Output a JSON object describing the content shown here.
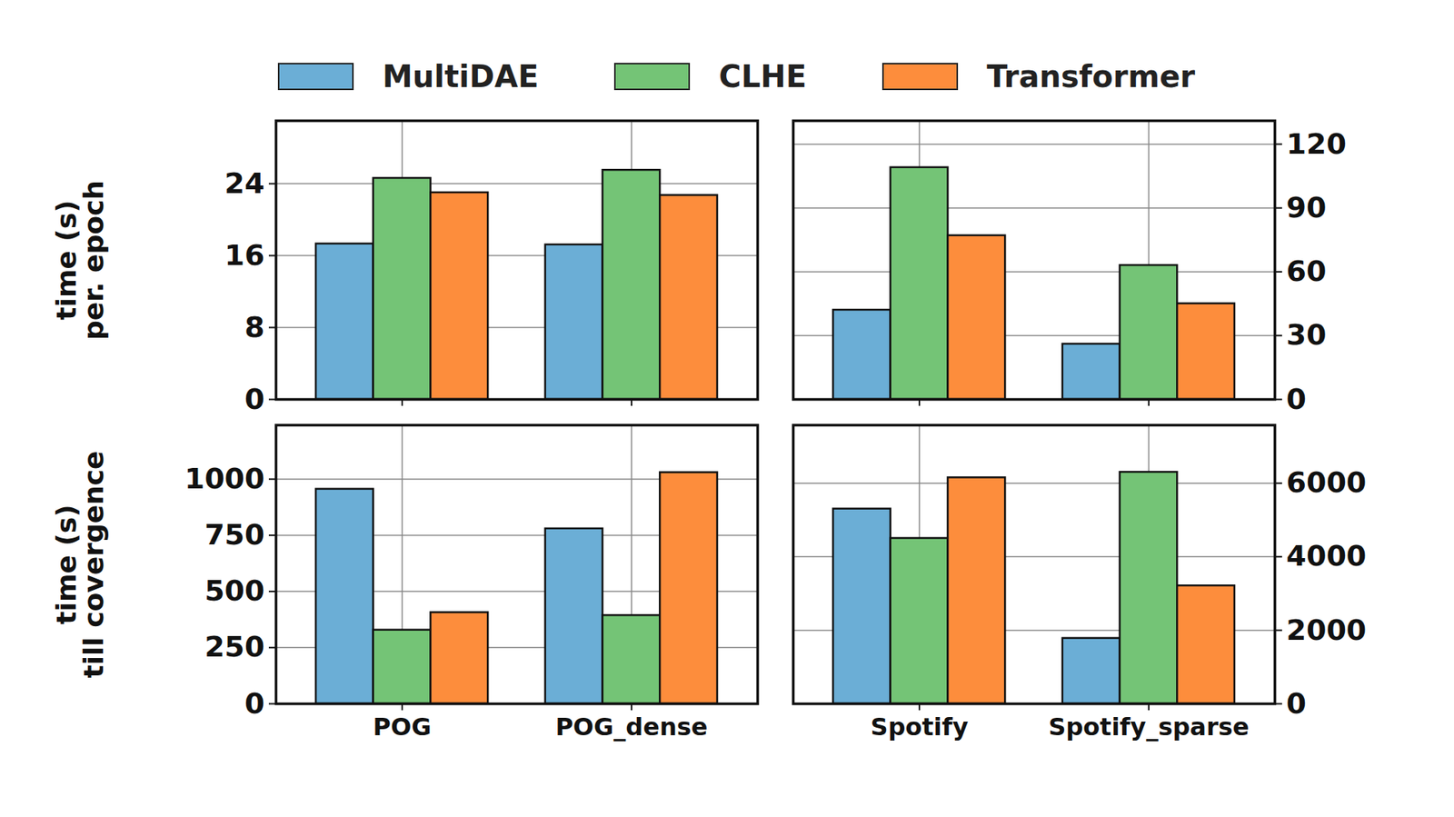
{
  "chart_data": [
    {
      "type": "bar",
      "ylabel": "time (s)\nper. epoch",
      "legend": "upper center",
      "categories": [
        "POG",
        "POG_dense"
      ],
      "series": [
        {
          "name": "MultiDAE",
          "color": "#6baed6",
          "values": [
            17.3,
            17.2
          ]
        },
        {
          "name": "CLHE",
          "color": "#74c476",
          "values": [
            24.6,
            25.5
          ]
        },
        {
          "name": "Transformer",
          "color": "#fd8d3c",
          "values": [
            23.0,
            22.7
          ]
        }
      ],
      "ylim": [
        0,
        31
      ],
      "yticks": [
        0,
        8,
        16,
        24
      ],
      "grid": true,
      "tick_labels": "y"
    },
    {
      "type": "bar",
      "categories": [
        "Spotify",
        "Spotify_sparse"
      ],
      "series": [
        {
          "name": "MultiDAE",
          "color": "#6baed6",
          "values": [
            42,
            26
          ]
        },
        {
          "name": "CLHE",
          "color": "#74c476",
          "values": [
            109,
            63
          ]
        },
        {
          "name": "Transformer",
          "color": "#fd8d3c",
          "values": [
            77,
            45
          ]
        }
      ],
      "ylim": [
        0,
        131
      ],
      "yticks": [
        0,
        30,
        60,
        90,
        120
      ],
      "grid": true,
      "tick_labels": "y"
    },
    {
      "type": "bar",
      "ylabel": "time (s)\ntill covergence",
      "categories": [
        "POG",
        "POG_dense"
      ],
      "series": [
        {
          "name": "MultiDAE",
          "color": "#6baed6",
          "values": [
            955,
            779
          ]
        },
        {
          "name": "CLHE",
          "color": "#74c476",
          "values": [
            328,
            393
          ]
        },
        {
          "name": "Transformer",
          "color": "#fd8d3c",
          "values": [
            406,
            1029
          ]
        }
      ],
      "ylim": [
        0,
        1240
      ],
      "yticks": [
        0,
        250,
        500,
        750,
        1000
      ],
      "grid": true
    },
    {
      "type": "bar",
      "categories": [
        "Spotify",
        "Spotify_sparse"
      ],
      "series": [
        {
          "name": "MultiDAE",
          "color": "#6baed6",
          "values": [
            5300,
            1780
          ]
        },
        {
          "name": "CLHE",
          "color": "#74c476",
          "values": [
            4500,
            6300
          ]
        },
        {
          "name": "Transformer",
          "color": "#fd8d3c",
          "values": [
            6150,
            3210
          ]
        }
      ],
      "ylim": [
        0,
        7580
      ],
      "yticks": [
        0,
        2000,
        4000,
        6000
      ],
      "grid": true
    }
  ]
}
